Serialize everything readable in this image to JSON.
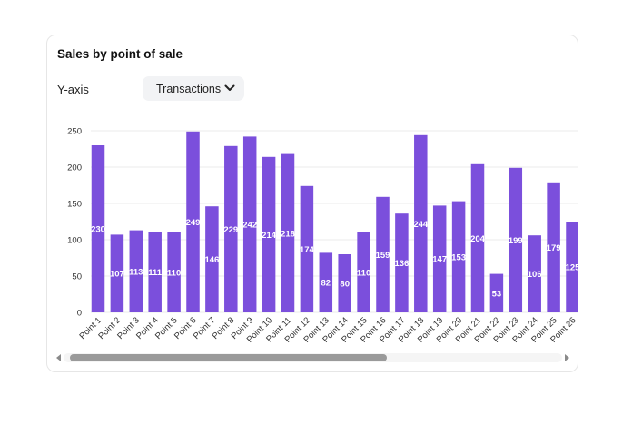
{
  "card": {
    "title": "Sales by point of sale"
  },
  "controls": {
    "yaxis_label": "Y-axis",
    "yaxis_select_value": "Transactions",
    "chevron_icon": "chevron-down-icon"
  },
  "colors": {
    "bar": "#7b4fdc",
    "grid": "#ebebeb",
    "axis_text": "#333333",
    "bar_label": "#ffffff"
  },
  "chart_data": {
    "type": "bar",
    "title": "Sales by point of sale",
    "xlabel": "",
    "ylabel": "",
    "ylim": [
      0,
      250
    ],
    "yticks": [
      0,
      50,
      100,
      150,
      200,
      250
    ],
    "grid": true,
    "categories": [
      "Point 1",
      "Point 2",
      "Point 3",
      "Point 4",
      "Point 5",
      "Point 6",
      "Point 7",
      "Point 8",
      "Point 9",
      "Point 10",
      "Point 11",
      "Point 12",
      "Point 13",
      "Point 14",
      "Point 15",
      "Point 16",
      "Point 17",
      "Point 18",
      "Point 19",
      "Point 20",
      "Point 21",
      "Point 22",
      "Point 23",
      "Point 24",
      "Point 25",
      "Point 26"
    ],
    "values": [
      230,
      107,
      113,
      111,
      110,
      249,
      146,
      229,
      242,
      214,
      218,
      174,
      82,
      80,
      110,
      159,
      136,
      244,
      147,
      153,
      204,
      53,
      199,
      106,
      179,
      125
    ]
  }
}
